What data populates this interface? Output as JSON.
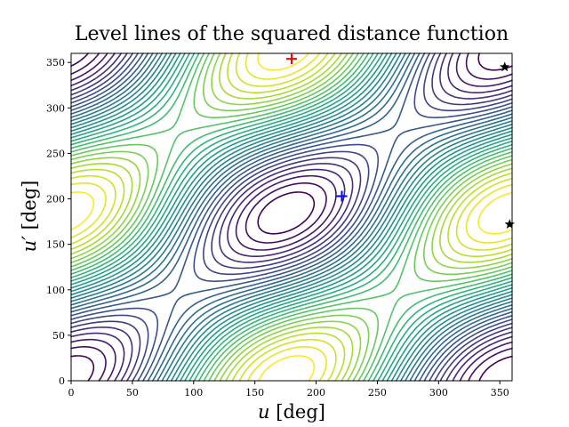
{
  "chart_data": {
    "type": "contour",
    "title": "Level lines of the squared distance function",
    "xlabel": {
      "symbol": "u",
      "unit": " [deg]"
    },
    "ylabel": {
      "symbol": "u′",
      "unit": " [deg]"
    },
    "xlim": [
      0,
      360
    ],
    "ylim": [
      0,
      360
    ],
    "xticks": [
      "0",
      "50",
      "100",
      "150",
      "200",
      "250",
      "300",
      "350"
    ],
    "yticks": [
      "0",
      "50",
      "100",
      "150",
      "200",
      "250",
      "300",
      "350"
    ],
    "colormap": "viridis",
    "grid": false,
    "markers": [
      {
        "name": "red-plus",
        "shape": "plus",
        "color": "#ff0000",
        "x": 180,
        "y": 354
      },
      {
        "name": "blue-plus",
        "shape": "plus",
        "color": "#0000ff",
        "x": 221,
        "y": 203
      },
      {
        "name": "star-upper",
        "shape": "star",
        "color": "#000000",
        "x": 354,
        "y": 345
      },
      {
        "name": "star-lower",
        "shape": "star",
        "color": "#000000",
        "x": 358,
        "y": 172
      }
    ]
  }
}
